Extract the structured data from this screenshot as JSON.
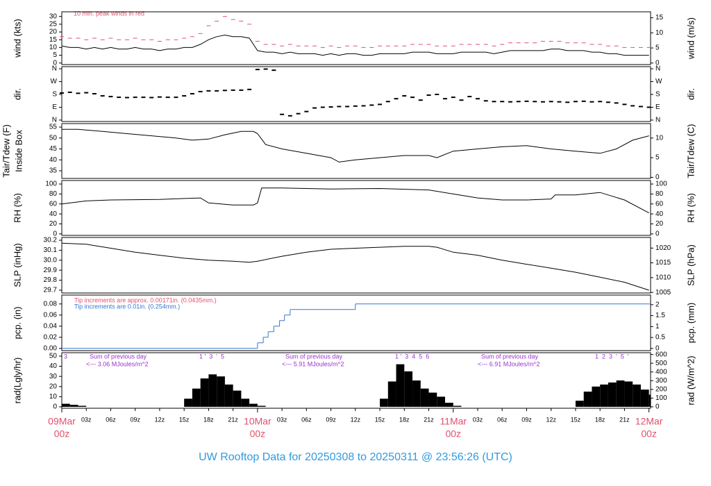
{
  "title": "UW Rooftop Data for 20250308  to  20250311 @ 23:56:26  (UTC)",
  "chart_data": [
    {
      "type": "line",
      "ylabel": "wind (kts)",
      "y2label": "wind (m/s)",
      "xlim": [
        0,
        72.2
      ],
      "ylim": [
        -1,
        33
      ],
      "yticks": [
        0,
        5,
        10,
        15,
        20,
        25,
        30
      ],
      "y2lim": [
        -0.51,
        16.98
      ],
      "y2ticks": [
        0,
        5,
        10,
        15
      ],
      "notes": [
        "10 min. peak winds in red"
      ],
      "series": [
        {
          "color": "#000000",
          "x": [
            0,
            1,
            2,
            3,
            4,
            5,
            6,
            7,
            8,
            9,
            10,
            11,
            12,
            13,
            14,
            15,
            16,
            17,
            18,
            19,
            20,
            21,
            22,
            23,
            24,
            25,
            26,
            27,
            28,
            29,
            30,
            31,
            32,
            33,
            34,
            35,
            36,
            37,
            38,
            39,
            40,
            41,
            42,
            43,
            44,
            45,
            46,
            47,
            48,
            49,
            50,
            51,
            52,
            53,
            54,
            55,
            56,
            57,
            58,
            59,
            60,
            61,
            62,
            63,
            64,
            65,
            66,
            67,
            68,
            69,
            70,
            71,
            72
          ],
          "values": [
            11,
            10,
            10,
            9,
            10,
            9,
            10,
            9,
            9,
            10,
            9,
            9,
            8,
            9,
            9,
            10,
            10,
            12,
            15,
            17,
            18,
            17,
            17,
            16,
            8,
            7,
            7,
            6,
            7,
            6,
            6,
            6,
            5,
            6,
            5,
            6,
            6,
            5,
            5,
            6,
            6,
            6,
            6,
            7,
            7,
            7,
            6,
            6,
            6,
            7,
            7,
            7,
            7,
            6,
            7,
            8,
            8,
            8,
            8,
            8,
            9,
            9,
            8,
            8,
            8,
            7,
            7,
            6,
            6,
            5,
            5,
            5,
            5
          ]
        },
        {
          "color": "#e0506e",
          "style": "dash",
          "x": [
            0,
            1,
            2,
            3,
            4,
            5,
            6,
            7,
            8,
            9,
            10,
            11,
            12,
            13,
            14,
            15,
            16,
            17,
            18,
            19,
            20,
            21,
            22,
            23,
            24,
            25,
            26,
            27,
            28,
            29,
            30,
            31,
            32,
            33,
            34,
            35,
            36,
            37,
            38,
            39,
            40,
            41,
            42,
            43,
            44,
            45,
            46,
            47,
            48,
            49,
            50,
            51,
            52,
            53,
            54,
            55,
            56,
            57,
            58,
            59,
            60,
            61,
            62,
            63,
            64,
            65,
            66,
            67,
            68,
            69,
            70,
            71,
            72
          ],
          "values": [
            17,
            16,
            16,
            15,
            16,
            15,
            16,
            15,
            15,
            16,
            15,
            15,
            14,
            15,
            15,
            16,
            17,
            19,
            24,
            27,
            30,
            28,
            27,
            25,
            14,
            12,
            12,
            11,
            12,
            11,
            11,
            11,
            10,
            11,
            10,
            11,
            11,
            10,
            10,
            11,
            11,
            11,
            11,
            12,
            12,
            12,
            11,
            11,
            11,
            12,
            12,
            12,
            12,
            11,
            12,
            13,
            13,
            13,
            13,
            14,
            14,
            14,
            13,
            13,
            13,
            12,
            12,
            11,
            11,
            10,
            10,
            10,
            10
          ]
        }
      ]
    },
    {
      "type": "scatter",
      "ylabel": "dir.",
      "y2label": "dir.",
      "xlim": [
        0,
        72.2
      ],
      "ylim": [
        -10,
        375
      ],
      "yticks": [
        {
          "value": 0,
          "label": "N"
        },
        {
          "value": 90,
          "label": "E"
        },
        {
          "value": 180,
          "label": "S"
        },
        {
          "value": 270,
          "label": "W"
        },
        {
          "value": 360,
          "label": "N"
        }
      ],
      "y2lim": [
        -10,
        375
      ],
      "y2ticks": [
        {
          "value": 0,
          "label": "N"
        },
        {
          "value": 90,
          "label": "E"
        },
        {
          "value": 180,
          "label": "S"
        },
        {
          "value": 270,
          "label": "W"
        },
        {
          "value": 360,
          "label": "N"
        }
      ],
      "series": [
        {
          "color": "#000000",
          "x": [
            0,
            1,
            2,
            3,
            4,
            5,
            6,
            7,
            8,
            9,
            10,
            11,
            12,
            13,
            14,
            15,
            16,
            17,
            18,
            19,
            20,
            21,
            22,
            23,
            24,
            25,
            26,
            27,
            28,
            29,
            30,
            31,
            32,
            33,
            34,
            35,
            36,
            37,
            38,
            39,
            40,
            41,
            42,
            43,
            44,
            45,
            46,
            47,
            48,
            49,
            50,
            51,
            52,
            53,
            54,
            55,
            56,
            57,
            58,
            59,
            60,
            61,
            62,
            63,
            64,
            65,
            66,
            67,
            68,
            69,
            70,
            71,
            72
          ],
          "values": [
            190,
            195,
            188,
            192,
            185,
            170,
            165,
            160,
            158,
            160,
            160,
            158,
            162,
            160,
            160,
            170,
            185,
            200,
            205,
            205,
            208,
            210,
            210,
            215,
            355,
            358,
            350,
            40,
            30,
            45,
            60,
            85,
            90,
            92,
            95,
            95,
            98,
            100,
            105,
            110,
            130,
            150,
            170,
            160,
            140,
            175,
            180,
            150,
            160,
            140,
            165,
            150,
            135,
            130,
            130,
            128,
            130,
            132,
            130,
            128,
            130,
            128,
            125,
            130,
            132,
            128,
            130,
            125,
            120,
            110,
            100,
            95,
            90
          ]
        }
      ]
    },
    {
      "type": "line",
      "ylabel": [
        "Tair/Tdew (F)",
        "Inside Box"
      ],
      "y2label": "Tair/Tdew (C)",
      "xlim": [
        0,
        72.2
      ],
      "ylim": [
        31.5,
        56.6
      ],
      "yticks": [
        35,
        40,
        45,
        50,
        55
      ],
      "y2lim": [
        -0.28,
        13.67
      ],
      "y2ticks": [
        0,
        5,
        10
      ],
      "series": [
        {
          "color": "#000000",
          "x": [
            0,
            2,
            5,
            8,
            11,
            14,
            16,
            18,
            20,
            22,
            23.5,
            24,
            25,
            27,
            30,
            33,
            34,
            36,
            39,
            42,
            45,
            46,
            48,
            51,
            54,
            57,
            60,
            63,
            66,
            68,
            70,
            72
          ],
          "values": [
            54,
            54,
            53,
            52,
            51,
            50,
            49,
            49.5,
            51.5,
            53,
            53,
            52,
            47,
            45,
            43,
            41,
            39,
            40,
            41,
            42,
            42,
            41,
            44,
            45,
            46,
            46.5,
            45,
            44,
            43,
            45,
            49,
            51
          ]
        }
      ]
    },
    {
      "type": "line",
      "ylabel": "RH (%)",
      "y2label": "RH (%)",
      "xlim": [
        0,
        72.2
      ],
      "ylim": [
        -3,
        107
      ],
      "yticks": [
        0,
        20,
        40,
        60,
        80,
        100
      ],
      "y2lim": [
        -3,
        107
      ],
      "y2ticks": [
        0,
        20,
        40,
        60,
        80,
        100
      ],
      "series": [
        {
          "color": "#000000",
          "x": [
            0,
            3,
            6,
            12,
            15,
            17,
            18,
            21,
            23.5,
            24,
            24.5,
            27,
            33,
            39,
            45,
            48,
            51,
            54,
            57,
            60,
            60.5,
            63,
            66,
            69,
            72
          ],
          "values": [
            60,
            66,
            68,
            69,
            71,
            72,
            62,
            58,
            58,
            62,
            92,
            92,
            90,
            91,
            88,
            80,
            72,
            68,
            68,
            70,
            78,
            78,
            83,
            68,
            42
          ]
        }
      ]
    },
    {
      "type": "line",
      "ylabel": "SLP (inHg)",
      "y2label": "SLP (hPa)",
      "xlim": [
        0,
        72.2
      ],
      "ylim": [
        29.672,
        30.228
      ],
      "yticks": [
        29.7,
        29.8,
        29.9,
        {
          "value": 30,
          "label": "30.0"
        },
        30.1,
        30.2
      ],
      "y2lim": [
        1004.8,
        1023.6
      ],
      "y2ticks": [
        1005,
        1010,
        1015,
        1020
      ],
      "series": [
        {
          "color": "#000000",
          "x": [
            0,
            3,
            6,
            9,
            12,
            15,
            18,
            21,
            23,
            24,
            27,
            30,
            33,
            36,
            39,
            42,
            45,
            46,
            48,
            51,
            54,
            57,
            60,
            63,
            66,
            69,
            72
          ],
          "values": [
            30.17,
            30.16,
            30.12,
            30.08,
            30.05,
            30.02,
            30.0,
            29.99,
            29.98,
            29.99,
            30.04,
            30.08,
            30.11,
            30.12,
            30.13,
            30.14,
            30.14,
            30.13,
            30.08,
            30.05,
            30.0,
            29.96,
            29.92,
            29.88,
            29.83,
            29.78,
            29.7
          ]
        }
      ]
    },
    {
      "type": "step",
      "ylabel": "pcp. (in)",
      "y2label": "pcp. (mm)",
      "xlim": [
        0,
        72.2
      ],
      "ylim": [
        -0.004,
        0.096
      ],
      "yticks": [
        {
          "value": 0,
          "label": "0.00"
        },
        0.02,
        0.04,
        0.06,
        0.08
      ],
      "y2lim": [
        -0.1,
        2.44
      ],
      "y2ticks": [
        0,
        0.5,
        1,
        1.5,
        2
      ],
      "notes": [
        "Tip increments are approx. 0.00171in. (0.0435mm.)",
        "Tip increments are 0.01in. (0.254mm.)"
      ],
      "series": [
        {
          "color": "#3377cc",
          "x": [
            0,
            24,
            24.7,
            25.3,
            26,
            26.7,
            27.3,
            28,
            36,
            72
          ],
          "values": [
            0,
            0.01,
            0.02,
            0.03,
            0.04,
            0.05,
            0.06,
            0.07,
            0.08,
            0.08
          ]
        }
      ]
    },
    {
      "type": "bar",
      "ylabel": "rad(Lgly/hr)",
      "y2label": "rad (W/m^2)",
      "xlim": [
        0,
        72.2
      ],
      "ylim": [
        -1.4,
        53.4
      ],
      "yticks": [
        0,
        10,
        20,
        30,
        40,
        50
      ],
      "y2lim": [
        -16.3,
        621
      ],
      "y2ticks": [
        0,
        100,
        200,
        300,
        400,
        500,
        600
      ],
      "notes": [
        "3",
        "1 '  3  '  5",
        "Sum of previous day",
        "<--- 3.06 MJoules/m^2",
        "Sum of previous day",
        "<--- 5.91 MJoules/m^2",
        "1 '  3  4  5  6",
        "Sum of previous day",
        "<--- 6.91 MJoules/m^2",
        "1  2  3  '  5  '"
      ],
      "xticks": [
        {
          "value": 3,
          "label": "03z"
        },
        {
          "value": 6,
          "label": "06z"
        },
        {
          "value": 9,
          "label": "09z"
        },
        {
          "value": 12,
          "label": "12z"
        },
        {
          "value": 15,
          "label": "15z"
        },
        {
          "value": 18,
          "label": "18z"
        },
        {
          "value": 21,
          "label": "21z"
        },
        {
          "value": 27,
          "label": "03z"
        },
        {
          "value": 30,
          "label": "06z"
        },
        {
          "value": 33,
          "label": "09z"
        },
        {
          "value": 36,
          "label": "12z"
        },
        {
          "value": 39,
          "label": "15z"
        },
        {
          "value": 42,
          "label": "18z"
        },
        {
          "value": 45,
          "label": "21z"
        },
        {
          "value": 51,
          "label": "03z"
        },
        {
          "value": 54,
          "label": "06z"
        },
        {
          "value": 57,
          "label": "09z"
        },
        {
          "value": 60,
          "label": "12z"
        },
        {
          "value": 63,
          "label": "15z"
        },
        {
          "value": 66,
          "label": "18z"
        },
        {
          "value": 69,
          "label": "21z"
        }
      ],
      "day_ticks": [
        {
          "value": 0,
          "label": "09Mar",
          "sublabel": "00z"
        },
        {
          "value": 24,
          "label": "10Mar",
          "sublabel": "00z"
        },
        {
          "value": 48,
          "label": "11Mar",
          "sublabel": "00z"
        },
        {
          "value": 72,
          "label": "12Mar",
          "sublabel": "00z"
        }
      ],
      "series": [
        {
          "color": "#000000",
          "x": [
            0,
            1,
            2,
            3,
            4,
            5,
            6,
            7,
            8,
            9,
            10,
            11,
            12,
            13,
            14,
            15,
            16,
            17,
            18,
            19,
            20,
            21,
            22,
            23,
            24,
            25,
            26,
            27,
            28,
            29,
            30,
            31,
            32,
            33,
            34,
            35,
            36,
            37,
            38,
            39,
            40,
            41,
            42,
            43,
            44,
            45,
            46,
            47,
            48,
            49,
            50,
            51,
            52,
            53,
            54,
            55,
            56,
            57,
            58,
            59,
            60,
            61,
            62,
            63,
            64,
            65,
            66,
            67,
            68,
            69,
            70,
            71,
            72
          ],
          "values": [
            3,
            2,
            1,
            0,
            0,
            0,
            0,
            0,
            0,
            0,
            0,
            0,
            0,
            0,
            0,
            8,
            18,
            28,
            32,
            30,
            22,
            16,
            8,
            3,
            1,
            0,
            0,
            0,
            0,
            0,
            0,
            0,
            0,
            0,
            0,
            0,
            0,
            0,
            0,
            8,
            25,
            42,
            35,
            26,
            18,
            14,
            10,
            4,
            1,
            0,
            0,
            0,
            0,
            0,
            0,
            0,
            0,
            0,
            0,
            0,
            0,
            0,
            0,
            6,
            15,
            20,
            22,
            24,
            26,
            25,
            22,
            17,
            12
          ]
        }
      ]
    }
  ]
}
